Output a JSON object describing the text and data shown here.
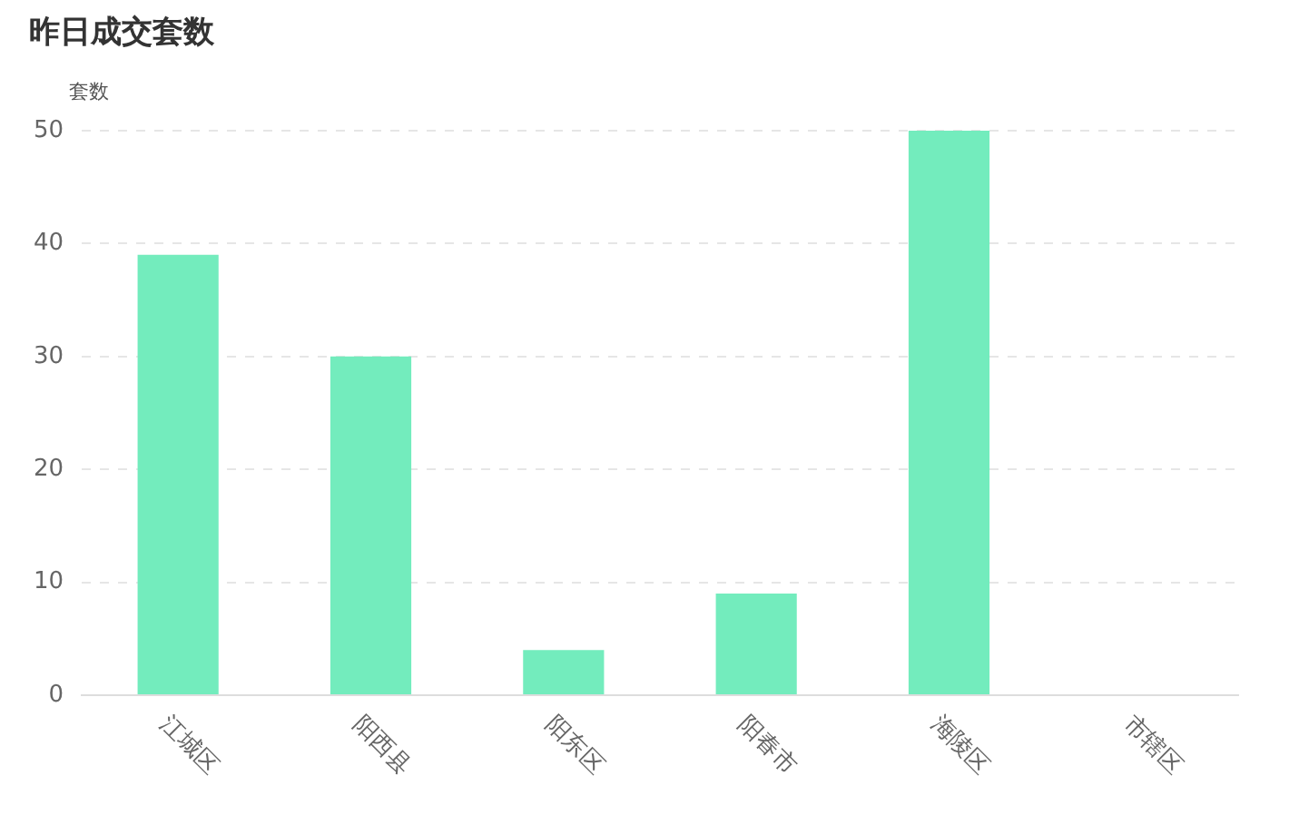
{
  "chart_data": {
    "type": "bar",
    "title": "昨日成交套数",
    "ylabel": "套数",
    "categories": [
      "江城区",
      "阳西县",
      "阳东区",
      "阳春市",
      "海陵区",
      "市辖区"
    ],
    "values": [
      39,
      30,
      4,
      9,
      50,
      0
    ],
    "color": "#73ecbd",
    "ylim": [
      0,
      50
    ],
    "yticks": [
      0,
      10,
      20,
      30,
      40,
      50
    ],
    "grid": "y"
  }
}
